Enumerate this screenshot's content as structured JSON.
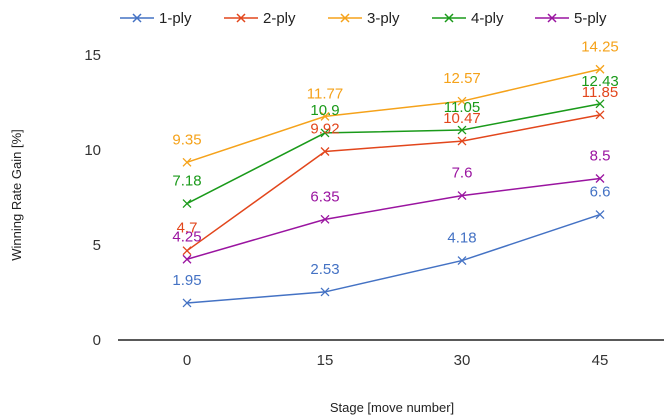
{
  "chart_data": {
    "type": "line",
    "x": [
      0,
      15,
      30,
      45
    ],
    "categories": [
      "0",
      "15",
      "30",
      "45"
    ],
    "xlabel": "Stage [move number]",
    "ylabel": "Winning Rate Gain [%]",
    "ylim": [
      0,
      15
    ],
    "yticks": [
      0,
      5,
      10,
      15
    ],
    "grid": false,
    "legend": "top",
    "marker": "x",
    "series": [
      {
        "name": "1-ply",
        "color": "#4472c4",
        "values": [
          1.95,
          2.53,
          4.18,
          6.6
        ]
      },
      {
        "name": "2-ply",
        "color": "#e2461c",
        "values": [
          4.7,
          9.92,
          10.47,
          11.85
        ]
      },
      {
        "name": "3-ply",
        "color": "#f5a21a",
        "values": [
          9.35,
          11.77,
          12.57,
          14.25
        ]
      },
      {
        "name": "4-ply",
        "color": "#1a9a1a",
        "values": [
          7.18,
          10.9,
          11.05,
          12.43
        ]
      },
      {
        "name": "5-ply",
        "color": "#9a14a0",
        "values": [
          4.25,
          6.35,
          7.6,
          8.5
        ]
      }
    ]
  }
}
